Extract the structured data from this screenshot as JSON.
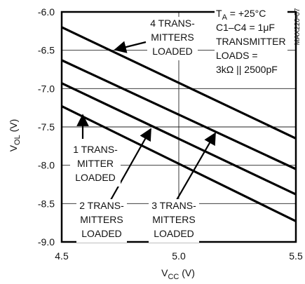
{
  "chart_data": {
    "type": "line",
    "xlabel": "VCC (V)",
    "ylabel": "VOL (V)",
    "xlim": [
      4.5,
      5.5
    ],
    "ylim": [
      -9.0,
      -6.0
    ],
    "xticks": [
      "4.5",
      "5.0",
      "5.5"
    ],
    "yticks": [
      "-6.0",
      "-6.5",
      "-7.0",
      "-7.5",
      "-8.0",
      "-8.5",
      "-9.0"
    ],
    "grid": true,
    "series": [
      {
        "name": "4 TRANSMITTERS LOADED",
        "x": [
          4.5,
          5.5
        ],
        "y": [
          -6.2,
          -7.65
        ]
      },
      {
        "name": "3 TRANSMITTERS LOADED",
        "x": [
          4.5,
          5.5
        ],
        "y": [
          -6.63,
          -8.05
        ]
      },
      {
        "name": "2 TRANSMITTERS LOADED",
        "x": [
          4.5,
          5.5
        ],
        "y": [
          -6.93,
          -8.38
        ]
      },
      {
        "name": "1 TRANSMITTER LOADED",
        "x": [
          4.5,
          5.5
        ],
        "y": [
          -7.23,
          -8.73
        ]
      }
    ],
    "annotations": {
      "curve4": [
        "4 TRANS-",
        "MITTERS",
        "LOADED"
      ],
      "curve3": [
        "3 TRANS-",
        "MITTERS",
        "LOADED"
      ],
      "curve2": [
        "2 TRANS-",
        "MITTERS",
        "LOADED"
      ],
      "curve1": [
        "1 TRANS-",
        "MITTER",
        "LOADED"
      ],
      "conditions": [
        "TA = +25°C",
        "C1–C4 = 1μF",
        "TRANSMITTER",
        "LOADS =",
        "3kΩ || 2500pF"
      ],
      "part_id": "MAX220-07"
    }
  }
}
